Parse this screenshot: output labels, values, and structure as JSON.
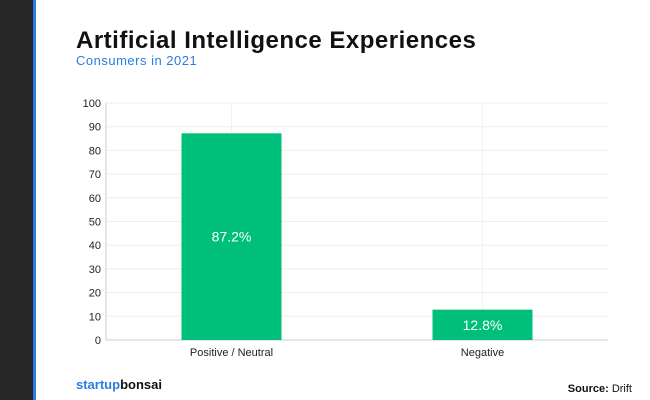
{
  "chart_data": {
    "type": "bar",
    "title": "Artificial Intelligence Experiences",
    "subtitle": "Consumers in 2021",
    "categories": [
      "Positive / Neutral",
      "Negative"
    ],
    "values": [
      87.2,
      12.8
    ],
    "labels": [
      "87.2%",
      "12.8%"
    ],
    "xlabel": "",
    "ylabel": "",
    "ylim": [
      0,
      100
    ],
    "yticks": [
      0,
      10,
      20,
      30,
      40,
      50,
      60,
      70,
      80,
      90,
      100
    ],
    "grid": true,
    "color": "#00bf7a"
  },
  "footer": {
    "logo_part1": "startup",
    "logo_part2": "bonsai",
    "source_label": "Source:",
    "source_value": " Drift"
  }
}
